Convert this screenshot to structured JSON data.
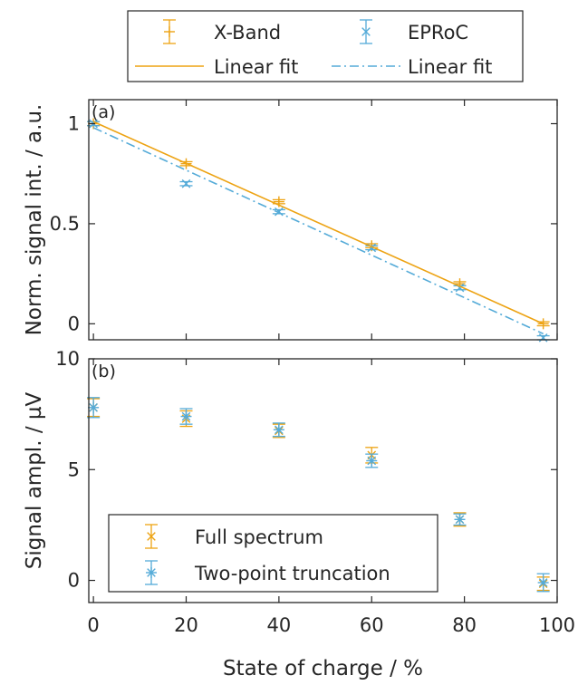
{
  "colors": {
    "orange": "#EDA313",
    "blue": "#55ABD8",
    "axis": "#262626"
  },
  "chart_data": [
    {
      "type": "scatter",
      "panel_label": "(a)",
      "ylabel": "Norm. signal int. / a.u.",
      "xlim": [
        -1,
        100
      ],
      "ylim": [
        -0.08,
        1.12
      ],
      "yticks": [
        0,
        0.5,
        1
      ],
      "ytick_labels": [
        "0",
        "0.5",
        "1"
      ],
      "grid": false,
      "legend": "top-outside",
      "series": [
        {
          "name": "X-Band",
          "kind": "errorbar",
          "marker": "plus",
          "color": "#EDA313",
          "x": [
            0,
            20,
            40,
            60,
            79,
            97
          ],
          "y": [
            1.0,
            0.8,
            0.61,
            0.39,
            0.2,
            0.0
          ],
          "err": [
            0.01,
            0.01,
            0.01,
            0.01,
            0.01,
            0.01
          ]
        },
        {
          "name": "EPRoC",
          "kind": "errorbar",
          "marker": "x",
          "color": "#55ABD8",
          "x": [
            0,
            20,
            40,
            60,
            79,
            97
          ],
          "y": [
            1.0,
            0.7,
            0.56,
            0.38,
            0.18,
            -0.07
          ],
          "err": [
            0.01,
            0.01,
            0.01,
            0.01,
            0.01,
            0.01
          ]
        },
        {
          "name": "Linear fit",
          "kind": "line",
          "dash": "solid",
          "color": "#EDA313",
          "x": [
            0,
            97
          ],
          "y": [
            1.01,
            0.0
          ]
        },
        {
          "name": "Linear fit",
          "kind": "line",
          "dash": "dashdot",
          "color": "#55ABD8",
          "x": [
            0,
            97
          ],
          "y": [
            0.98,
            -0.05
          ]
        }
      ]
    },
    {
      "type": "scatter",
      "panel_label": "(b)",
      "ylabel": "Signal ampl. / µV",
      "xlabel": "State of charge / %",
      "xlim": [
        -1,
        100
      ],
      "ylim": [
        -1,
        10
      ],
      "xticks": [
        0,
        20,
        40,
        60,
        80,
        100
      ],
      "xtick_labels": [
        "0",
        "20",
        "40",
        "60",
        "80",
        "100"
      ],
      "yticks": [
        0,
        5,
        10
      ],
      "ytick_labels": [
        "0",
        "5",
        "10"
      ],
      "grid": false,
      "legend": "bottom-left",
      "series": [
        {
          "name": "Full spectrum",
          "kind": "errorbar",
          "marker": "x",
          "color": "#EDA313",
          "x": [
            0,
            20,
            40,
            60,
            79,
            97
          ],
          "y": [
            7.8,
            7.3,
            6.75,
            5.65,
            2.75,
            -0.15
          ],
          "err": [
            0.4,
            0.35,
            0.3,
            0.35,
            0.3,
            0.3
          ]
        },
        {
          "name": "Two-point truncation",
          "kind": "errorbar",
          "marker": "star",
          "color": "#55ABD8",
          "x": [
            0,
            20,
            40,
            60,
            79,
            97
          ],
          "y": [
            7.8,
            7.4,
            6.8,
            5.4,
            2.75,
            -0.1
          ],
          "err": [
            0.45,
            0.35,
            0.3,
            0.3,
            0.25,
            0.4
          ]
        }
      ]
    }
  ]
}
